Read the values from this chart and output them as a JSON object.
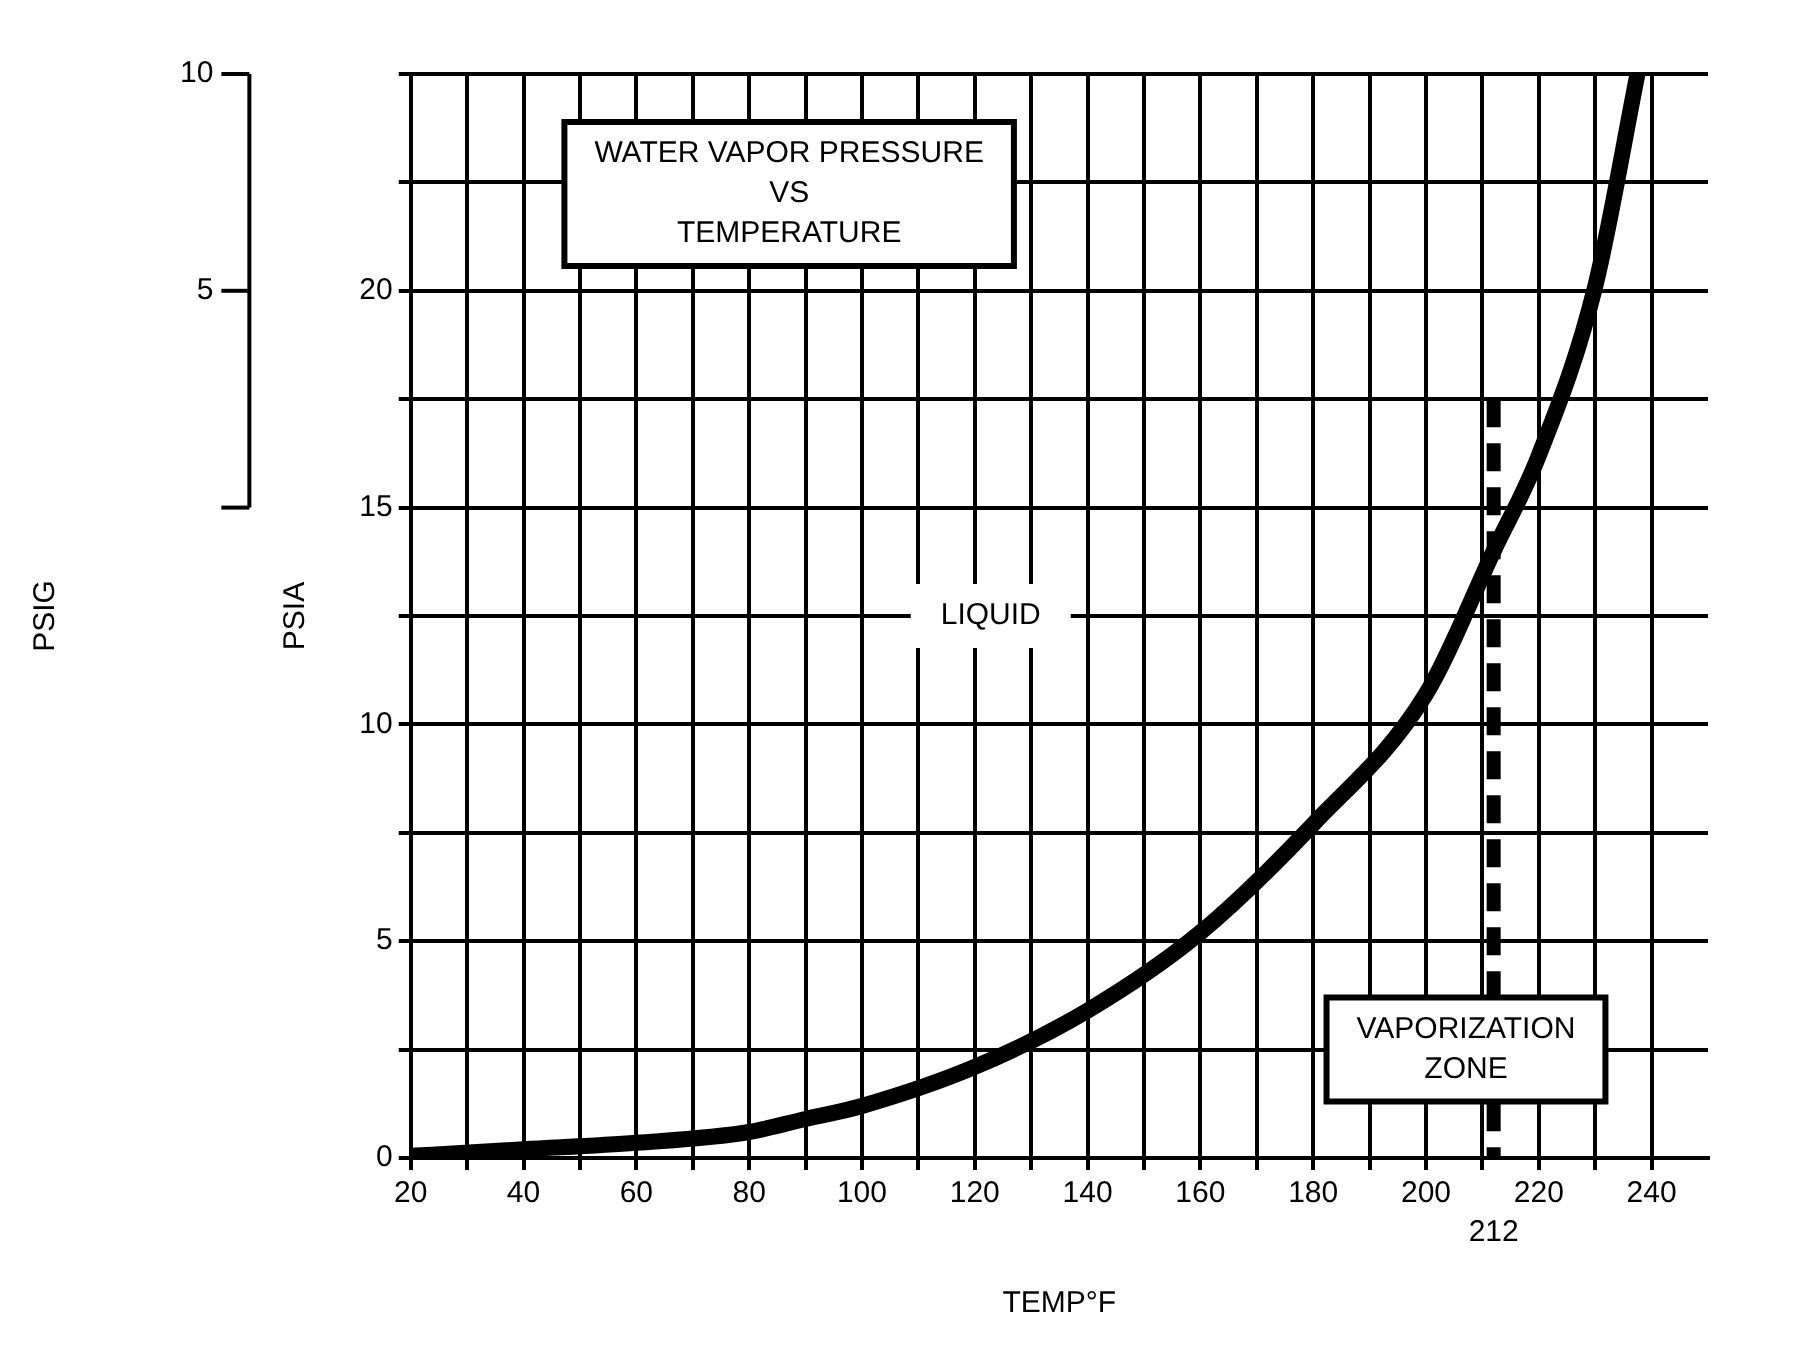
{
  "chart_data": {
    "type": "line",
    "title": "WATER VAPOR PRESSURE\nVS\nTEMPERATURE",
    "xlabel": "TEMP°F",
    "ylabel": "PSIA",
    "y2label": "PSIG",
    "annotations": [
      "LIQUID",
      "VAPORIZATION\nZONE"
    ],
    "x": [
      20,
      40,
      60,
      80,
      90,
      100,
      120,
      140,
      160,
      180,
      200,
      212,
      220,
      230,
      237.5
    ],
    "series": [
      {
        "color": "#000000",
        "values": [
          0.05,
          0.2,
          0.35,
          0.6,
          0.9,
          1.2,
          2.1,
          3.4,
          5.2,
          7.7,
          10.7,
          14,
          16.2,
          20.1,
          25
        ]
      }
    ],
    "xlim": [
      20,
      250
    ],
    "xticks": [
      20,
      {
        "value": 30,
        "label": null
      },
      40,
      {
        "value": 50,
        "label": null
      },
      60,
      {
        "value": 70,
        "label": null
      },
      80,
      {
        "value": 90,
        "label": null
      },
      100,
      {
        "value": 110,
        "label": null
      },
      120,
      {
        "value": 130,
        "label": null
      },
      140,
      {
        "value": 150,
        "label": null
      },
      160,
      {
        "value": 170,
        "label": null
      },
      180,
      {
        "value": 190,
        "label": null
      },
      200,
      {
        "value": 210,
        "label": null
      },
      220,
      {
        "value": 230,
        "label": null
      },
      240
    ],
    "ylim": [
      0,
      25
    ],
    "yticks": [
      0,
      {
        "value": 2.5,
        "label": null
      },
      5,
      {
        "value": 7.5,
        "label": null
      },
      10,
      {
        "value": 12.5,
        "label": null
      },
      15,
      {
        "value": 17.5,
        "label": null
      },
      20,
      {
        "value": 22.5,
        "label": null
      },
      {
        "value": 25,
        "label": null
      }
    ],
    "y2lim": [
      -15,
      10
    ],
    "y2ticks": [
      {
        "value": 0,
        "label": null
      },
      5,
      10
    ],
    "ref_lines": [
      {
        "axis": "x",
        "value": 212,
        "label": "212",
        "color": "#000000",
        "line_style": "dashed"
      }
    ],
    "grid": true,
    "legend": false,
    "marker": "none",
    "line_style": "solid"
  }
}
